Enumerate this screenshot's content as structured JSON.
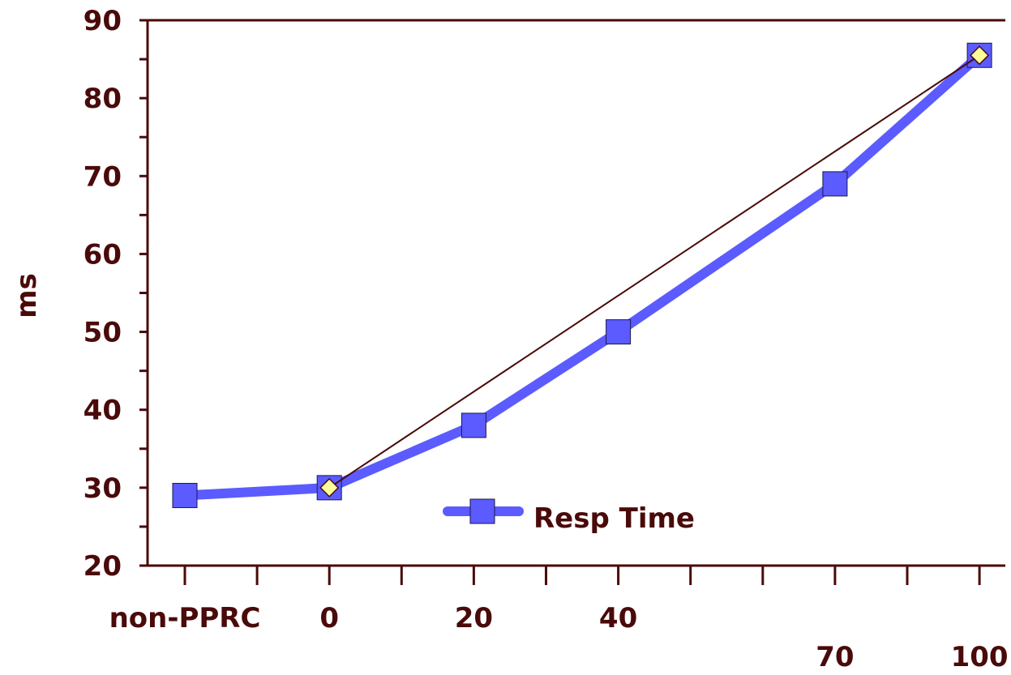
{
  "chart_data": {
    "type": "line",
    "ylabel": "ms",
    "xlabel": "",
    "ylim": [
      20,
      90
    ],
    "y_ticks": [
      "20",
      "30",
      "40",
      "50",
      "60",
      "70",
      "80",
      "90"
    ],
    "x_tick_labels": [
      {
        "label": "non-PPRC",
        "slot": 0
      },
      {
        "label": "0",
        "slot": 1
      },
      {
        "label": "20",
        "slot": 2
      },
      {
        "label": "40",
        "slot": 3
      },
      {
        "label": "70",
        "slot": 4.5
      },
      {
        "label": "100",
        "slot": 5.5
      }
    ],
    "series": [
      {
        "name": "Resp Time",
        "color": "#5b5bff",
        "marker": "square",
        "points": [
          {
            "x": "non-PPRC",
            "y": 29
          },
          {
            "x": "0",
            "y": 30
          },
          {
            "x": "20",
            "y": 38
          },
          {
            "x": "40",
            "y": 50
          },
          {
            "x": "70",
            "y": 69
          },
          {
            "x": "100",
            "y": 85.5
          }
        ]
      },
      {
        "color": "#4a0a0a",
        "marker": "diamond",
        "marker_color": "#ffff99",
        "points": [
          {
            "x": "0",
            "y": 30
          },
          {
            "x": "100",
            "y": 85.5
          }
        ]
      }
    ],
    "legend": {
      "position": "bottom-center",
      "entries": [
        "Resp Time"
      ]
    },
    "grid": false,
    "axis_color": "#4a0a0a"
  }
}
